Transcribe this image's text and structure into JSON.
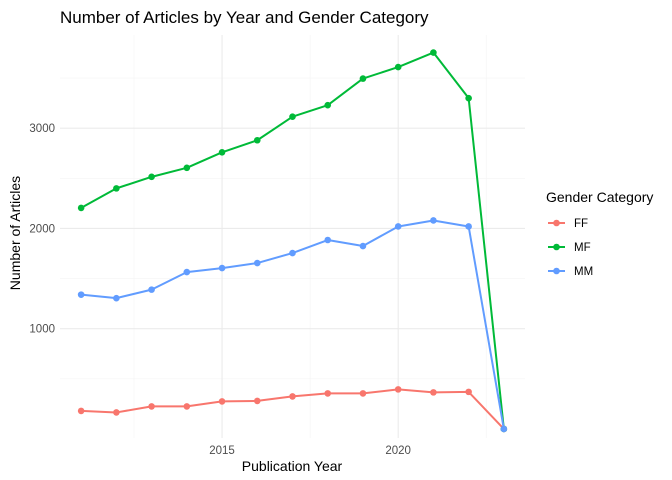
{
  "chart_data": {
    "type": "line",
    "title": "Number of Articles by Year and Gender Category",
    "xlabel": "Publication Year",
    "ylabel": "Number of Articles",
    "x": [
      2011,
      2012,
      2013,
      2014,
      2015,
      2016,
      2017,
      2018,
      2019,
      2020,
      2021,
      2022,
      2023
    ],
    "xlim": [
      2010.4,
      2023.6
    ],
    "ylim": [
      -90,
      3930
    ],
    "x_ticks": [
      2015,
      2020
    ],
    "y_ticks": [
      1000,
      2000,
      3000
    ],
    "grid": true,
    "legend_title": "Gender Category",
    "legend_position": "right",
    "series": [
      {
        "name": "FF",
        "color": "#F8766D",
        "values": [
          180,
          165,
          225,
          225,
          275,
          280,
          325,
          355,
          355,
          395,
          365,
          370,
          0
        ]
      },
      {
        "name": "MF",
        "color": "#00BA38",
        "values": [
          2205,
          2400,
          2515,
          2605,
          2760,
          2880,
          3115,
          3230,
          3495,
          3610,
          3755,
          3300,
          0
        ]
      },
      {
        "name": "MM",
        "color": "#619CFF",
        "values": [
          1340,
          1305,
          1390,
          1565,
          1605,
          1655,
          1755,
          1885,
          1825,
          2020,
          2080,
          2020,
          0
        ]
      }
    ]
  }
}
